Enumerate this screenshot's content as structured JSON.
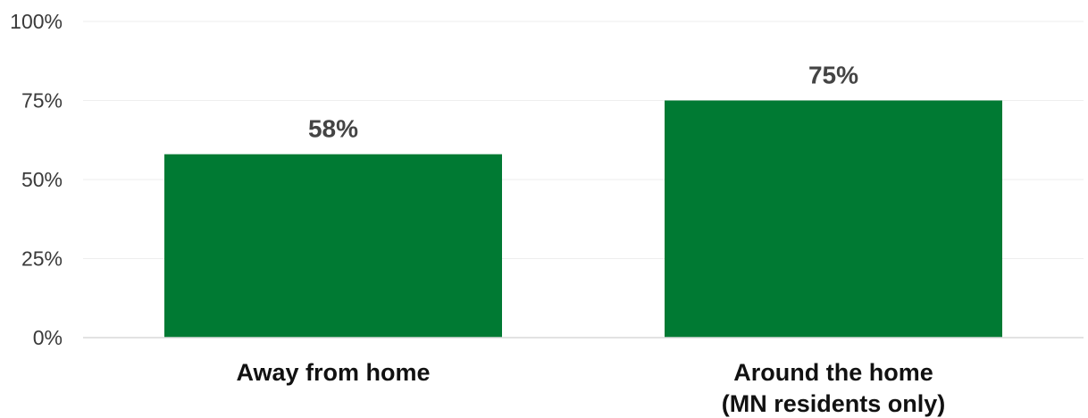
{
  "chart_data": {
    "type": "bar",
    "categories": [
      [
        "Away from home"
      ],
      [
        "Around the home",
        "(MN residents only)"
      ]
    ],
    "values": [
      58,
      75
    ],
    "value_labels": [
      "58%",
      "75%"
    ],
    "ylim": [
      0,
      100
    ],
    "yticks": [
      0,
      25,
      50,
      75,
      100
    ],
    "ytick_labels": [
      "0%",
      "25%",
      "50%",
      "75%",
      "100%"
    ],
    "grid": true,
    "bar_color": "#007a33",
    "gridline_color": "#eeeeee",
    "baseline_color": "#d9d9d9",
    "title": "",
    "xlabel": "",
    "ylabel": ""
  }
}
